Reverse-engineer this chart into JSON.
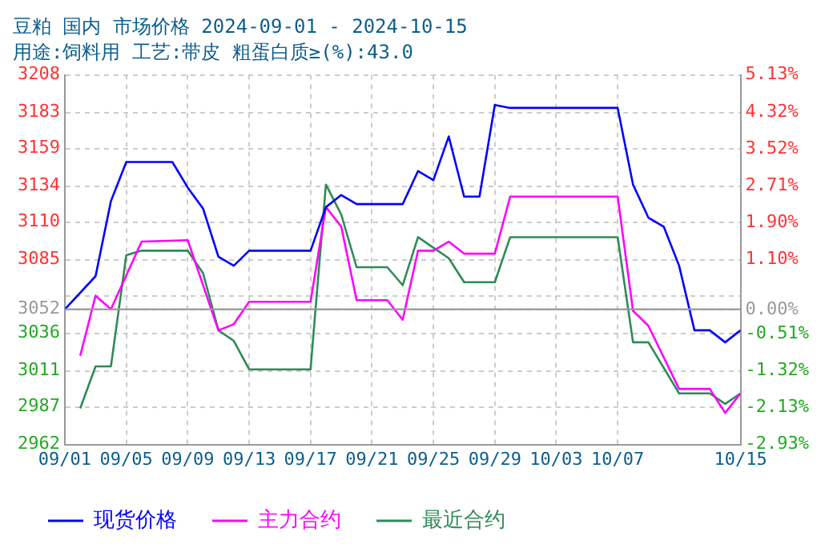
{
  "chart_data": {
    "type": "line",
    "title": "豆粕 国内 市场价格 2024-09-01 - 2024-10-15",
    "subtitle": "用途:饲料用 工艺:带皮 粗蛋白质≥(%):43.0",
    "xlim": [
      "2024-09-01",
      "2024-10-15"
    ],
    "xticks": [
      {
        "value": "2024-09-01",
        "label": "09/01"
      },
      {
        "value": "2024-09-05",
        "label": "09/05"
      },
      {
        "value": "2024-09-09",
        "label": "09/09"
      },
      {
        "value": "2024-09-13",
        "label": "09/13"
      },
      {
        "value": "2024-09-17",
        "label": "09/17"
      },
      {
        "value": "2024-09-21",
        "label": "09/21"
      },
      {
        "value": "2024-09-25",
        "label": "09/25"
      },
      {
        "value": "2024-09-29",
        "label": "09/29"
      },
      {
        "value": "2024-10-03",
        "label": "10/03"
      },
      {
        "value": "2024-10-07",
        "label": "10/07"
      },
      {
        "value": "2024-10-15",
        "label": "10/15"
      }
    ],
    "ylim": [
      2962,
      3208
    ],
    "yticks": [
      2962,
      2987,
      3011,
      3036,
      3052,
      {
        "value": 3061,
        "label": null
      },
      3085,
      3110,
      3134,
      3159,
      3183,
      3208
    ],
    "y2lim": [
      -2.93,
      5.13
    ],
    "y2ticks": [
      {
        "value": -2.93,
        "label": "-2.93%"
      },
      {
        "value": -2.13,
        "label": "-2.13%"
      },
      {
        "value": -1.32,
        "label": "-1.32%"
      },
      {
        "value": -0.51,
        "label": "-0.51%"
      },
      {
        "value": 0,
        "label": "0.00%"
      },
      {
        "value": 1.1,
        "label": "1.10%"
      },
      {
        "value": 1.9,
        "label": "1.90%"
      },
      {
        "value": 2.71,
        "label": "2.71%"
      },
      {
        "value": 3.52,
        "label": "3.52%"
      },
      {
        "value": 4.32,
        "label": "4.32%"
      },
      {
        "value": 5.13,
        "label": "5.13%"
      }
    ],
    "ref_lines": [
      {
        "axis": "y",
        "value": 3052,
        "color": "#999999"
      }
    ],
    "grid": true,
    "legend": "bottom",
    "marker": "none",
    "line_style": "solid",
    "series": [
      {
        "name": "现货价格",
        "color": "#0000ff",
        "x": [
          "2024-09-01",
          "2024-09-03",
          "2024-09-04",
          "2024-09-05",
          "2024-09-08",
          "2024-09-09",
          "2024-09-10",
          "2024-09-11",
          "2024-09-12",
          "2024-09-13",
          "2024-09-17",
          "2024-09-18",
          "2024-09-19",
          "2024-09-20",
          "2024-09-23",
          "2024-09-24",
          "2024-09-25",
          "2024-09-26",
          "2024-09-27",
          "2024-09-28",
          "2024-09-29",
          "2024-09-30",
          "2024-10-07",
          "2024-10-08",
          "2024-10-09",
          "2024-10-10",
          "2024-10-11",
          "2024-10-12",
          "2024-10-13",
          "2024-10-14",
          "2024-10-15"
        ],
        "values": [
          3052,
          3074,
          3124,
          3150,
          3150,
          3133,
          3119,
          3087,
          3081,
          3091,
          3091,
          3120,
          3128,
          3122,
          3122,
          3144,
          3138,
          3167,
          3127,
          3127,
          3188,
          3186,
          3186,
          3135,
          3113,
          3107,
          3081,
          3038,
          3038,
          3030,
          3038
        ]
      },
      {
        "name": "主力合约",
        "color": "#ff00ff",
        "x": [
          "2024-09-02",
          "2024-09-03",
          "2024-09-04",
          "2024-09-06",
          "2024-09-09",
          "2024-09-11",
          "2024-09-12",
          "2024-09-13",
          "2024-09-17",
          "2024-09-18",
          "2024-09-19",
          "2024-09-20",
          "2024-09-22",
          "2024-09-23",
          "2024-09-24",
          "2024-09-25",
          "2024-09-26",
          "2024-09-27",
          "2024-09-29",
          "2024-09-30",
          "2024-10-07",
          "2024-10-08",
          "2024-10-09",
          "2024-10-11",
          "2024-10-13",
          "2024-10-14",
          "2024-10-15"
        ],
        "values": [
          3021,
          3061,
          3052,
          3097,
          3098,
          3038,
          3042,
          3057,
          3057,
          3120,
          3107,
          3058,
          3058,
          3045,
          3091,
          3091,
          3097,
          3089,
          3089,
          3127,
          3127,
          3051,
          3041,
          2999,
          2999,
          2983,
          2996
        ]
      },
      {
        "name": "最近合约",
        "color": "#2e8b57",
        "x": [
          "2024-09-02",
          "2024-09-03",
          "2024-09-04",
          "2024-09-05",
          "2024-09-06",
          "2024-09-09",
          "2024-09-10",
          "2024-09-11",
          "2024-09-12",
          "2024-09-13",
          "2024-09-17",
          "2024-09-18",
          "2024-09-19",
          "2024-09-20",
          "2024-09-22",
          "2024-09-23",
          "2024-09-24",
          "2024-09-25",
          "2024-09-26",
          "2024-09-27",
          "2024-09-29",
          "2024-09-30",
          "2024-10-07",
          "2024-10-08",
          "2024-10-09",
          "2024-10-11",
          "2024-10-13",
          "2024-10-14",
          "2024-10-15"
        ],
        "values": [
          2986,
          3014,
          3014,
          3088,
          3091,
          3091,
          3076,
          3038,
          3031,
          3012,
          3012,
          3135,
          3115,
          3080,
          3080,
          3068,
          3100,
          3093,
          3086,
          3070,
          3070,
          3100,
          3100,
          3030,
          3030,
          2996,
          2996,
          2989,
          2996
        ]
      }
    ]
  }
}
